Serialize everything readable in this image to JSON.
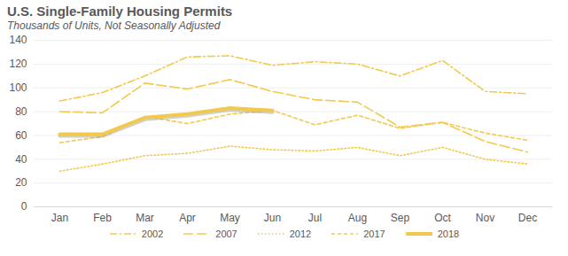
{
  "chart_data": {
    "type": "line",
    "title": "U.S. Single-Family Housing Permits",
    "subtitle": "Thousands of Units, Not Seasonally Adjusted",
    "categories": [
      "Jan",
      "Feb",
      "Mar",
      "Apr",
      "May",
      "Jun",
      "Jul",
      "Aug",
      "Sep",
      "Oct",
      "Nov",
      "Dec"
    ],
    "ylim": [
      0,
      140
    ],
    "yticks": [
      0,
      20,
      40,
      60,
      80,
      100,
      120,
      140
    ],
    "grid": true,
    "legend": "bottom",
    "series": [
      {
        "name": "2002",
        "color": "#f2c94c",
        "line_style": "dashdot",
        "values": [
          89,
          96,
          110,
          126,
          127,
          119,
          122,
          120,
          110,
          123,
          97,
          95
        ]
      },
      {
        "name": "2007",
        "color": "#f2c94c",
        "line_style": "longdash",
        "values": [
          80,
          79,
          104,
          99,
          107,
          97,
          90,
          88,
          67,
          71,
          55,
          46
        ]
      },
      {
        "name": "2012",
        "color": "#f2c94c",
        "line_style": "dotted",
        "values": [
          30,
          36,
          43,
          45,
          51,
          48,
          47,
          50,
          43,
          50,
          40,
          36
        ]
      },
      {
        "name": "2017",
        "color": "#f2c94c",
        "line_style": "dashed",
        "values": [
          54,
          59,
          76,
          70,
          78,
          81,
          69,
          77,
          66,
          71,
          62,
          56
        ]
      },
      {
        "name": "2018",
        "color": "#f2c94c",
        "line_style": "solid",
        "values": [
          61,
          61,
          75,
          78,
          83,
          81,
          null,
          null,
          null,
          null,
          null,
          null
        ]
      }
    ]
  }
}
